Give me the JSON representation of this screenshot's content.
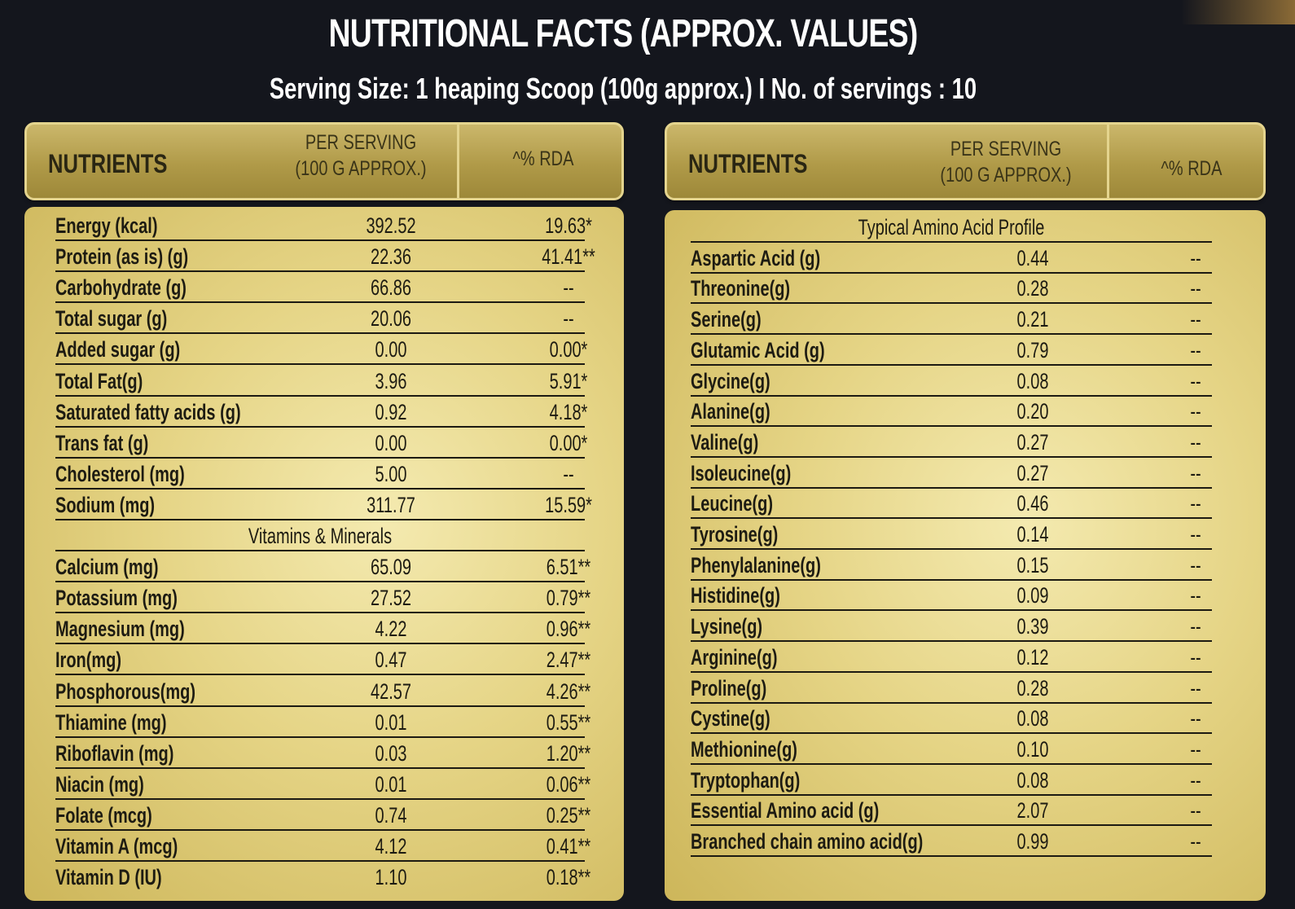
{
  "title": "NUTRITIONAL FACTS (APPROX. VALUES)",
  "subtitle": "Serving Size: 1 heaping Scoop (100g approx.)  I No. of servings : 10",
  "left_table": {
    "header": {
      "nutrients": "NUTRIENTS",
      "per_serving_line1": "PER SERVING",
      "per_serving_line2": "(100 G APPROX.)",
      "rda": "^% RDA"
    },
    "rows": [
      {
        "name": "Energy (kcal)",
        "value": "392.52",
        "rda": "19.63*"
      },
      {
        "name": "Protein (as is) (g)",
        "value": "22.36",
        "rda": "41.41**"
      },
      {
        "name": "Carbohydrate (g)",
        "value": "66.86",
        "rda": "--"
      },
      {
        "name": "Total sugar (g)",
        "value": "20.06",
        "rda": "--"
      },
      {
        "name": "Added sugar (g)",
        "value": "0.00",
        "rda": "0.00*"
      },
      {
        "name": "Total Fat(g)",
        "value": "3.96",
        "rda": "5.91*"
      },
      {
        "name": "Saturated fatty acids (g)",
        "value": "0.92",
        "rda": "4.18*"
      },
      {
        "name": "Trans fat (g)",
        "value": "0.00",
        "rda": "0.00*"
      },
      {
        "name": "Cholesterol (mg)",
        "value": "5.00",
        "rda": "--"
      },
      {
        "name": "Sodium (mg)",
        "value": "311.77",
        "rda": "15.59*"
      }
    ],
    "section": "Vitamins & Minerals",
    "rows2": [
      {
        "name": "Calcium (mg)",
        "value": "65.09",
        "rda": "6.51**"
      },
      {
        "name": "Potassium (mg)",
        "value": "27.52",
        "rda": "0.79**"
      },
      {
        "name": "Magnesium (mg)",
        "value": "4.22",
        "rda": "0.96**"
      },
      {
        "name": "Iron(mg)",
        "value": "0.47",
        "rda": "2.47**"
      },
      {
        "name": "Phosphorous(mg)",
        "value": "42.57",
        "rda": "4.26**"
      },
      {
        "name": "Thiamine (mg)",
        "value": "0.01",
        "rda": "0.55**"
      },
      {
        "name": "Riboflavin (mg)",
        "value": "0.03",
        "rda": "1.20**"
      },
      {
        "name": "Niacin (mg)",
        "value": "0.01",
        "rda": "0.06**"
      },
      {
        "name": "Folate (mcg)",
        "value": "0.74",
        "rda": "0.25**"
      },
      {
        "name": "Vitamin A (mcg)",
        "value": "4.12",
        "rda": "0.41**"
      },
      {
        "name": "Vitamin D (IU)",
        "value": "1.10",
        "rda": "0.18**"
      }
    ]
  },
  "right_table": {
    "header": {
      "nutrients": "NUTRIENTS",
      "per_serving_line1": "PER SERVING",
      "per_serving_line2": "(100 G APPROX.)",
      "rda": "^% RDA"
    },
    "section": "Typical Amino Acid Profile",
    "rows": [
      {
        "name": "Aspartic Acid (g)",
        "value": "0.44",
        "rda": "--"
      },
      {
        "name": "Threonine(g)",
        "value": "0.28",
        "rda": "--"
      },
      {
        "name": "Serine(g)",
        "value": "0.21",
        "rda": "--"
      },
      {
        "name": "Glutamic Acid (g)",
        "value": "0.79",
        "rda": "--"
      },
      {
        "name": "Glycine(g)",
        "value": "0.08",
        "rda": "--"
      },
      {
        "name": "Alanine(g)",
        "value": "0.20",
        "rda": "--"
      },
      {
        "name": "Valine(g)",
        "value": "0.27",
        "rda": "--"
      },
      {
        "name": "Isoleucine(g)",
        "value": "0.27",
        "rda": "--"
      },
      {
        "name": "Leucine(g)",
        "value": "0.46",
        "rda": "--"
      },
      {
        "name": "Tyrosine(g)",
        "value": "0.14",
        "rda": "--"
      },
      {
        "name": "Phenylalanine(g)",
        "value": "0.15",
        "rda": "--"
      },
      {
        "name": "Histidine(g)",
        "value": "0.09",
        "rda": "--"
      },
      {
        "name": "Lysine(g)",
        "value": "0.39",
        "rda": "--"
      },
      {
        "name": "Arginine(g)",
        "value": "0.12",
        "rda": "--"
      },
      {
        "name": "Proline(g)",
        "value": "0.28",
        "rda": "--"
      },
      {
        "name": "Cystine(g)",
        "value": "0.08",
        "rda": "--"
      },
      {
        "name": "Methionine(g)",
        "value": "0.10",
        "rda": "--"
      },
      {
        "name": "Tryptophan(g)",
        "value": "0.08",
        "rda": "--"
      },
      {
        "name": "Essential Amino acid (g)",
        "value": "2.07",
        "rda": "--"
      },
      {
        "name": "Branched chain amino acid(g)",
        "value": "0.99",
        "rda": "--"
      }
    ]
  },
  "colors": {
    "background": "#14161d",
    "gold_header": "#b09a48",
    "gold_panel": "#e5d485",
    "text_dark": "#1d1b12"
  }
}
